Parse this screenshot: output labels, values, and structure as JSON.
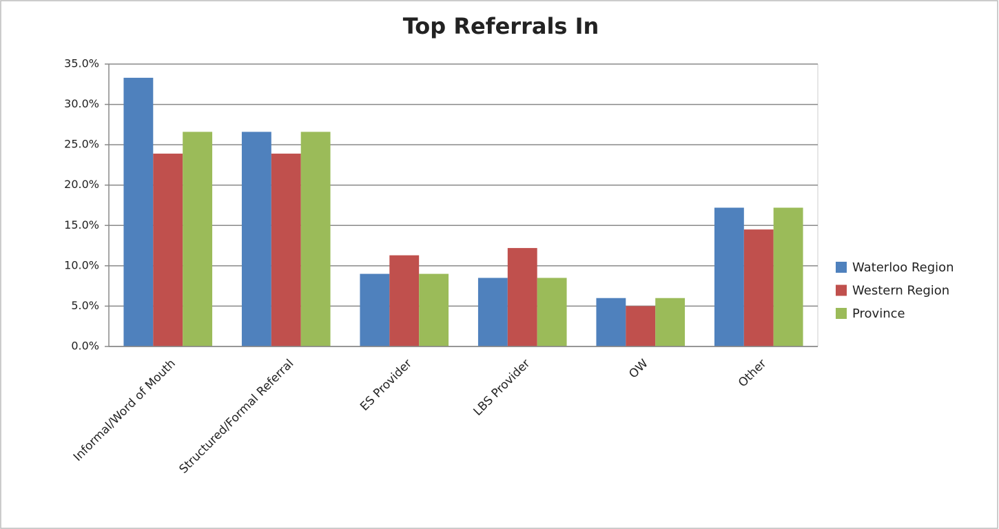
{
  "chart_data": {
    "type": "bar",
    "title": "Top Referrals In",
    "categories": [
      "Informal/Word of Mouth",
      "Structured/Formal Referral",
      "ES Provider",
      "LBS Provider",
      "OW",
      "Other"
    ],
    "series": [
      {
        "name": "Waterloo Region",
        "color": "#4f81bd",
        "values": [
          33.3,
          26.6,
          9.0,
          8.5,
          6.0,
          17.2
        ]
      },
      {
        "name": "Western Region",
        "color": "#c0504d",
        "values": [
          23.9,
          23.9,
          11.3,
          12.2,
          5.0,
          14.5
        ]
      },
      {
        "name": "Province",
        "color": "#9bbb59",
        "values": [
          26.6,
          26.6,
          9.0,
          8.5,
          6.0,
          17.2
        ]
      }
    ],
    "ylim": [
      0,
      35
    ],
    "yticks": [
      {
        "value": 0,
        "label": "0.0%"
      },
      {
        "value": 5,
        "label": "5.0%"
      },
      {
        "value": 10,
        "label": "10.0%"
      },
      {
        "value": 15,
        "label": "15.0%"
      },
      {
        "value": 20,
        "label": "20.0%"
      },
      {
        "value": 25,
        "label": "25.0%"
      },
      {
        "value": 30,
        "label": "30.0%"
      },
      {
        "value": 35,
        "label": "35.0%"
      }
    ],
    "grid": true,
    "legend": "right"
  }
}
